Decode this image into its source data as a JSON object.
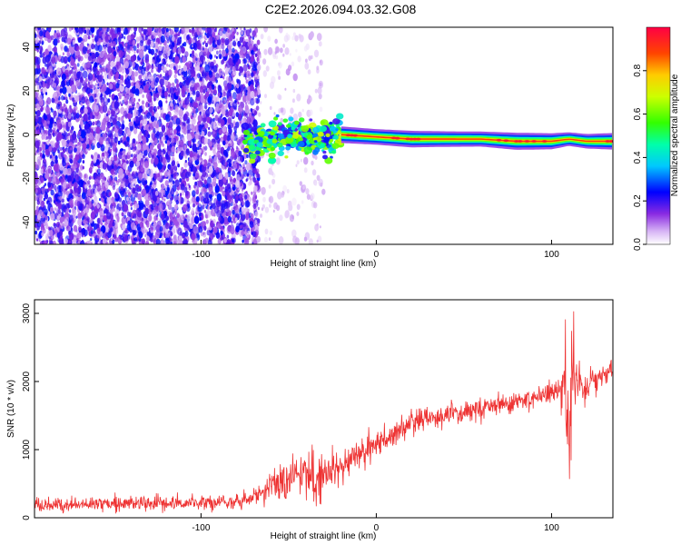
{
  "title": "C2E2.2026.094.03.32.G08",
  "colors": {
    "snr_line": "#ee3333",
    "scatter": "#8a2be2",
    "ridge_low": "#0000ff",
    "ridge_high": "#ff0000"
  },
  "chart_data": [
    {
      "type": "heatmap",
      "xlabel": "Height of straight line (km)",
      "ylabel": "Frequency (Hz)",
      "xlim": [
        -195,
        135
      ],
      "ylim": [
        -50,
        49
      ],
      "x_ticks": [
        -100,
        0,
        100
      ],
      "y_ticks": [
        -40,
        -20,
        0,
        20,
        40
      ],
      "colorbar": {
        "label": "Normalized spectral amplitude",
        "range": [
          0,
          1
        ],
        "ticks": [
          0.0,
          0.2,
          0.4,
          0.6,
          0.8
        ],
        "tick_labels": [
          "0.0",
          "0.2",
          "0.4",
          "0.6",
          "0.8"
        ]
      },
      "regions": [
        {
          "name": "noise",
          "x": [
            -195,
            -67
          ],
          "y": [
            -50,
            49
          ],
          "amplitude": 0.15
        },
        {
          "name": "sparse-noise",
          "x": [
            -67,
            -30
          ],
          "y": [
            -50,
            49
          ],
          "amplitude": 0.05
        },
        {
          "name": "signal-onset",
          "x": [
            -75,
            -20
          ],
          "y": [
            -8,
            10
          ],
          "amplitude": 0.45
        },
        {
          "name": "signal-ridge",
          "x": [
            -20,
            135
          ],
          "y": [
            -4,
            2
          ],
          "amplitude": 0.85
        }
      ],
      "ridge": {
        "x": [
          -75,
          -60,
          -45,
          -35,
          -20,
          0,
          20,
          40,
          60,
          80,
          100,
          110,
          120,
          135
        ],
        "y": [
          -3,
          -2,
          0,
          -2,
          0,
          -1,
          -2,
          -2,
          -2,
          -3,
          -3,
          -2,
          -3,
          -3
        ],
        "amplitude": [
          0.3,
          0.35,
          0.4,
          0.45,
          0.8,
          0.7,
          0.8,
          0.7,
          0.65,
          0.85,
          0.75,
          0.5,
          0.6,
          0.8
        ]
      }
    },
    {
      "type": "line",
      "xlabel": "Height of straight line (km)",
      "ylabel": "SNR (10 * v/v)",
      "xlim": [
        -195,
        135
      ],
      "ylim": [
        0,
        3200
      ],
      "x_ticks": [
        -100,
        0,
        100
      ],
      "y_ticks": [
        0,
        1000,
        2000,
        3000
      ],
      "series": [
        {
          "x": [
            -195,
            -180,
            -160,
            -140,
            -120,
            -100,
            -80,
            -72,
            -65,
            -55,
            -45,
            -35,
            -25,
            -15,
            -5,
            0,
            10,
            20,
            40,
            60,
            80,
            95,
            105,
            108,
            111,
            113,
            115,
            120,
            130,
            135
          ],
          "y": [
            200,
            190,
            200,
            210,
            215,
            220,
            240,
            260,
            380,
            550,
            620,
            560,
            650,
            900,
            1000,
            1080,
            1200,
            1400,
            1520,
            1600,
            1700,
            1780,
            1900,
            1950,
            1500,
            2300,
            1900,
            1950,
            2100,
            2170
          ],
          "noise": [
            100,
            100,
            100,
            100,
            100,
            100,
            100,
            120,
            180,
            250,
            300,
            350,
            300,
            250,
            200,
            180,
            180,
            170,
            160,
            150,
            140,
            140,
            200,
            800,
            1000,
            600,
            300,
            180,
            150,
            150
          ]
        }
      ]
    }
  ]
}
